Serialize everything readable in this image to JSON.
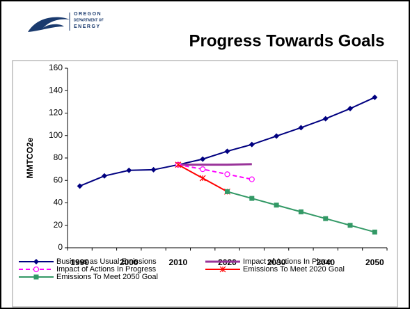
{
  "logo": {
    "lines": [
      "OREGON",
      "DEPARTMENT OF",
      "ENERGY"
    ]
  },
  "chart_data": {
    "type": "line",
    "title": "Progress Towards Goals",
    "y_label": "MMTCO2e",
    "categories": [
      "1990",
      null,
      "2000",
      null,
      "2010",
      null,
      "2020",
      null,
      "2030",
      null,
      "2040",
      null,
      "2050"
    ],
    "ylim": [
      0,
      160
    ],
    "yticks": [
      0,
      20,
      40,
      60,
      80,
      100,
      120,
      140,
      160
    ],
    "series": [
      {
        "name": "Business as Usual Emissions",
        "color": "#000080",
        "marker": "diamond",
        "dash": false,
        "values": [
          55,
          64,
          69,
          69.5,
          74,
          79,
          86,
          92,
          99.5,
          107,
          115,
          124,
          134
        ]
      },
      {
        "name": "Impact of Actions In Place",
        "color": "#993399",
        "marker": "none",
        "dash": false,
        "values": [
          null,
          null,
          null,
          null,
          74,
          74,
          74,
          74.5,
          null,
          null,
          null,
          null,
          null
        ]
      },
      {
        "name": "Impact of Actions In Progress",
        "color": "#ff00ff",
        "marker": "circle",
        "dash": true,
        "values": [
          null,
          null,
          null,
          null,
          74,
          70,
          65.5,
          61,
          null,
          null,
          null,
          null,
          null
        ]
      },
      {
        "name": "Emissions To Meet 2020 Goal",
        "color": "#ff0000",
        "marker": "star",
        "dash": false,
        "values": [
          null,
          null,
          null,
          null,
          74,
          62,
          50,
          null,
          null,
          null,
          null,
          null,
          null
        ]
      },
      {
        "name": "Emissions To Meet 2050 Goal",
        "color": "#339966",
        "marker": "square",
        "dash": false,
        "values": [
          null,
          null,
          null,
          null,
          null,
          null,
          50,
          44,
          38,
          32,
          26,
          20,
          14
        ]
      }
    ]
  }
}
